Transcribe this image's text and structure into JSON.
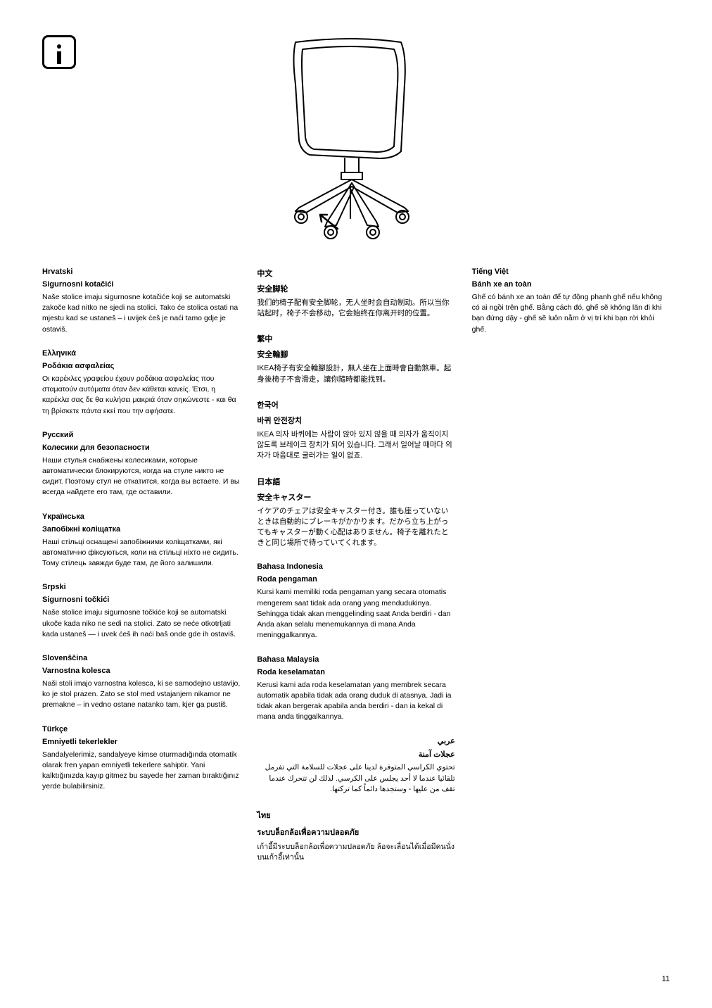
{
  "page_number": "11",
  "illustration": {
    "description": "office-chair-castor-diagram",
    "stroke_color": "#000000",
    "stroke_width": 2
  },
  "columns": [
    [
      {
        "lang": "Hrvatski",
        "heading": "Sigurnosni kotačići",
        "body": "Naše stolice imaju sigurnosne kotačiće koji se automatski zakoče kad nitko ne sjedi na stolici. Tako će stolica ostati na mjestu kad se ustaneš – i uvijek ćeš je naći tamo gdje je ostaviš."
      },
      {
        "lang": "Ελληνικά",
        "heading": "Ροδάκια ασφαλείας",
        "body": "Οι καρέκλες γραφείου έχουν ροδάκια ασφαλείας που σταματούν αυτόματα όταν δεν κάθεται κανείς. Έτσι, η καρέκλα σας δε θα κυλήσει μακριά όταν σηκώνεστε - και θα τη βρίσκετε πάντα εκεί που την αφήσατε."
      },
      {
        "lang": "Русский",
        "heading": "Колесики для безопасности",
        "body": "Наши стулья снабжены колесиками, которые автоматически блокируются, когда на стуле никто не сидит. Поэтому стул не откатится, когда вы встаете. И вы всегда найдете его там, где оставили."
      },
      {
        "lang": "Yкраїнська",
        "heading": "Запобіжні коліщатка",
        "body": "Наші стільці оснащені запобіжними коліщатками, які автоматично фіксуються, коли на стільці ніхто не сидить. Тому стілець завжди буде там, де його залишили."
      },
      {
        "lang": "Srpski",
        "heading": "Sigurnosni točkići",
        "body": "Naše stolice imaju sigurnosne točkiće koji se automatski ukoče kada niko ne sedi na stolici. Zato se neće otkotrljati kada ustaneš — i uvek ćeš ih naći baš onde gde ih ostaviš."
      },
      {
        "lang": "Slovenščina",
        "heading": "Varnostna kolesca",
        "body": "Naši stoli imajo varnostna kolesca, ki se samodejno ustavijo, ko je stol prazen. Zato se stol med vstajanjem nikamor ne premakne – in vedno ostane natanko tam, kjer ga pustiš."
      },
      {
        "lang": "Türkçe",
        "heading": "Emniyetli tekerlekler",
        "body": "Sandalyelerimiz, sandalyeye kimse oturmadığında otomatik olarak fren yapan emniyetli tekerlere sahiptir. Yani kalktığınızda kayıp gitmez bu sayede her zaman bıraktığınız yerde bulabilirsiniz."
      }
    ],
    [
      {
        "lang": "中文",
        "heading": "安全脚轮",
        "body": "我们的椅子配有安全脚轮，无人坐时会自动制动。所以当你站起时，椅子不会移动，它会始终在你离开时的位置。"
      },
      {
        "lang": "繁中",
        "heading": "安全輪腳",
        "body": "IKEA椅子有安全輪腳設計，無人坐在上面時會自動煞車。起身後椅子不會滑走，讓你隨時都能找到。"
      },
      {
        "lang": "한국어",
        "heading": "바퀴 안전장치",
        "body": "IKEA 의자 바퀴에는 사람이 앉아 있지 않을 때 의자가 움직이지 않도록 브레이크 장치가 되어 있습니다. 그래서 일어날 때마다 의자가 마음대로 굴러가는 일이 없죠."
      },
      {
        "lang": "日本語",
        "heading": "安全キャスター",
        "body": "イケアのチェアは安全キャスター付き。誰も座っていないときは自動的にブレーキがかかります。だから立ち上がってもキャスターが動く心配はありません。椅子を離れたときと同じ場所で待っていてくれます。"
      },
      {
        "lang": "Bahasa Indonesia",
        "heading": "Roda pengaman",
        "body": "Kursi kami memiliki roda pengaman yang secara otomatis mengerem saat tidak ada orang yang mendudukinya. Sehingga tidak akan menggelinding saat Anda berdiri - dan Anda akan selalu menemukannya di mana Anda meninggalkannya."
      },
      {
        "lang": "Bahasa Malaysia",
        "heading": "Roda keselamatan",
        "body": "Kerusi kami ada roda keselamatan yang membrek secara automatik apabila tidak ada orang duduk di atasnya. Jadi ia tidak akan bergerak apabila anda berdiri - dan ia kekal di mana anda tinggalkannya."
      },
      {
        "lang": "عربي",
        "heading": "عجلات آمنة",
        "body": "تحتوي الكراسي المتوفرة لدينا على عجلات للسلامة التي تفرمل تلقائيا عندما لا أحد يجلس على الكرسي. لذلك لن تتحرك عندما تقف من عليها - وستجدها دائماً كما تركتها.",
        "rtl": true
      },
      {
        "lang": "ไทย",
        "heading": "ระบบล็อกล้อเพื่อความปลอดภัย",
        "body": "เก้าอี้มีระบบล็อกล้อเพื่อความปลอดภัย ล้อจะเลื่อนได้เมื่อมีคนนั่งบนเก้าอี้เท่านั้น"
      }
    ],
    [
      {
        "lang": "Tiếng Việt",
        "heading": "Bánh xe an toàn",
        "body": "Ghế có bánh xe an toàn để tự động phanh ghế nếu không có ai ngồi trên ghế. Bằng cách đó, ghế sẽ không lăn đi khi bạn đứng dậy - ghế sẽ luôn nằm ở vị trí khi bạn rời khỏi ghế."
      }
    ]
  ]
}
